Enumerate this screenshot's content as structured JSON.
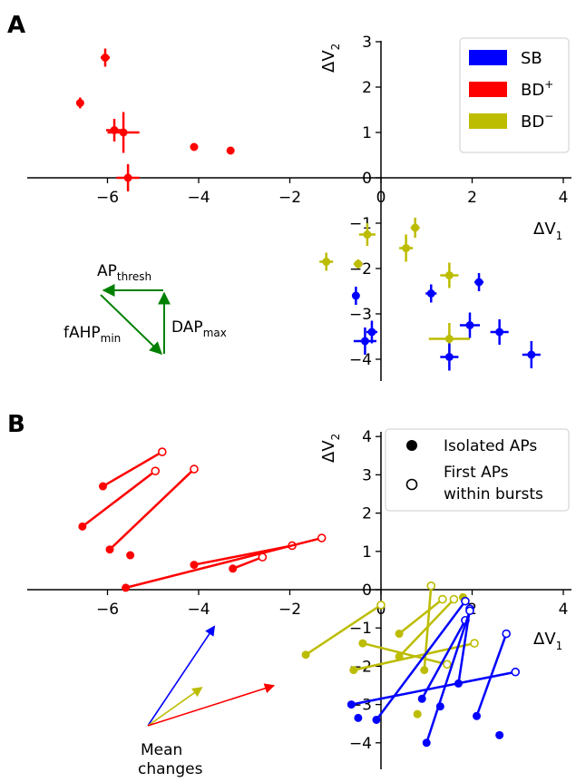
{
  "colors": {
    "SB": "#0000ff",
    "BD_plus": "#ff0000",
    "BD_minus": "#bcbc00",
    "axis": "#000000",
    "diagram": "#008000"
  },
  "chart_data": [
    {
      "panel_label": "A",
      "type": "scatter",
      "xlim": [
        -7,
        4
      ],
      "ylim": [
        -4.5,
        3
      ],
      "xticks": [
        -6,
        -4,
        -2,
        0,
        2,
        4
      ],
      "yticks": [
        -4,
        -3,
        -2,
        -1,
        0,
        1,
        2,
        3
      ],
      "xtick_labels": [
        "−6",
        "−4",
        "−2",
        "0",
        "2",
        "4"
      ],
      "ytick_labels": [
        "−4",
        "−3",
        "−2",
        "−1",
        "0",
        "1",
        "2",
        "3"
      ],
      "xlabel": {
        "base": "ΔV",
        "sub": "1"
      },
      "ylabel": {
        "base": "ΔV",
        "sub": "2"
      },
      "legend_position": "upper right",
      "legend": [
        {
          "base": "SB",
          "sup": "",
          "color_key": "SB"
        },
        {
          "base": "BD",
          "sup": "+",
          "color_key": "BD_plus"
        },
        {
          "base": "BD",
          "sup": "−",
          "color_key": "BD_minus"
        }
      ],
      "series": [
        {
          "color_key": "BD_plus",
          "points": [
            {
              "x": -6.05,
              "y": 2.65,
              "xerr": 0.1,
              "yerr": 0.2
            },
            {
              "x": -6.6,
              "y": 1.65,
              "xerr": 0.08,
              "yerr": 0.12
            },
            {
              "x": -5.85,
              "y": 1.05,
              "xerr": 0.18,
              "yerr": 0.25
            },
            {
              "x": -5.65,
              "y": 1.0,
              "xerr": 0.35,
              "yerr": 0.45
            },
            {
              "x": -5.55,
              "y": 0.0,
              "xerr": 0.25,
              "yerr": 0.3
            },
            {
              "x": -4.1,
              "y": 0.68,
              "xerr": 0.05,
              "yerr": 0.05
            },
            {
              "x": -3.3,
              "y": 0.6,
              "xerr": 0.08,
              "yerr": 0.05
            }
          ]
        },
        {
          "color_key": "BD_minus",
          "points": [
            {
              "x": -1.2,
              "y": -1.85,
              "xerr": 0.15,
              "yerr": 0.2
            },
            {
              "x": -0.5,
              "y": -1.9,
              "xerr": 0.1,
              "yerr": 0.1
            },
            {
              "x": -0.3,
              "y": -1.25,
              "xerr": 0.18,
              "yerr": 0.25
            },
            {
              "x": 0.55,
              "y": -1.55,
              "xerr": 0.15,
              "yerr": 0.3
            },
            {
              "x": 0.75,
              "y": -1.1,
              "xerr": 0.1,
              "yerr": 0.22
            },
            {
              "x": 1.5,
              "y": -2.15,
              "xerr": 0.2,
              "yerr": 0.28
            },
            {
              "x": 1.5,
              "y": -3.55,
              "xerr": 0.45,
              "yerr": 0.35
            }
          ]
        },
        {
          "color_key": "SB",
          "points": [
            {
              "x": -0.55,
              "y": -2.6,
              "xerr": 0.05,
              "yerr": 0.2
            },
            {
              "x": 1.1,
              "y": -2.55,
              "xerr": 0.12,
              "yerr": 0.2
            },
            {
              "x": 2.15,
              "y": -2.3,
              "xerr": 0.1,
              "yerr": 0.2
            },
            {
              "x": -0.35,
              "y": -3.6,
              "xerr": 0.25,
              "yerr": 0.3
            },
            {
              "x": -0.2,
              "y": -3.4,
              "xerr": 0.12,
              "yerr": 0.25
            },
            {
              "x": 1.95,
              "y": -3.25,
              "xerr": 0.22,
              "yerr": 0.28
            },
            {
              "x": 2.6,
              "y": -3.4,
              "xerr": 0.2,
              "yerr": 0.28
            },
            {
              "x": 1.5,
              "y": -3.95,
              "xerr": 0.2,
              "yerr": 0.3
            },
            {
              "x": 3.3,
              "y": -3.9,
              "xerr": 0.2,
              "yerr": 0.3
            }
          ]
        }
      ]
    },
    {
      "panel_label": "B",
      "type": "scatter",
      "xlim": [
        -7,
        4
      ],
      "ylim": [
        -4.5,
        4
      ],
      "xticks": [
        -6,
        -4,
        -2,
        0,
        2,
        4
      ],
      "yticks": [
        -4,
        -3,
        -2,
        -1,
        0,
        1,
        2,
        3,
        4
      ],
      "xtick_labels": [
        "−6",
        "−4",
        "−2",
        "0",
        "2",
        "4"
      ],
      "ytick_labels": [
        "−4",
        "−3",
        "−2",
        "−1",
        "0",
        "1",
        "2",
        "3",
        "4"
      ],
      "xlabel": {
        "base": "ΔV",
        "sub": "1"
      },
      "ylabel": {
        "base": "ΔV",
        "sub": "2"
      },
      "legend_position": "upper right",
      "legend": [
        {
          "marker": "filled",
          "lines": [
            "Isolated APs"
          ]
        },
        {
          "marker": "open",
          "lines": [
            "First APs",
            "within bursts"
          ]
        }
      ],
      "series": [
        {
          "color_key": "BD_plus",
          "pairs": [
            {
              "from": [
                -6.1,
                2.7
              ],
              "to": [
                -4.8,
                3.6
              ]
            },
            {
              "from": [
                -6.55,
                1.65
              ],
              "to": [
                -4.95,
                3.1
              ]
            },
            {
              "from": [
                -5.95,
                1.05
              ],
              "to": [
                -4.1,
                3.15
              ]
            },
            {
              "from": [
                -4.1,
                0.65
              ],
              "to": [
                -1.95,
                1.15
              ]
            },
            {
              "from": [
                -3.25,
                0.55
              ],
              "to": [
                -2.6,
                0.85
              ]
            },
            {
              "from": [
                -5.6,
                0.05
              ],
              "to": [
                -1.3,
                1.35
              ]
            },
            {
              "from": [
                -5.5,
                0.9
              ],
              "to": null
            }
          ]
        },
        {
          "color_key": "BD_minus",
          "pairs": [
            {
              "from": [
                -1.65,
                -1.7
              ],
              "to": [
                0.0,
                -0.4
              ]
            },
            {
              "from": [
                -0.6,
                -2.1
              ],
              "to": [
                2.05,
                -1.4
              ]
            },
            {
              "from": [
                0.4,
                -1.15
              ],
              "to": [
                1.35,
                -0.25
              ]
            },
            {
              "from": [
                0.4,
                -1.75
              ],
              "to": [
                1.6,
                -0.25
              ]
            },
            {
              "from": [
                0.95,
                -2.1
              ],
              "to": [
                1.1,
                0.1
              ]
            },
            {
              "from": [
                -0.4,
                -1.4
              ],
              "to": [
                1.45,
                -1.95
              ]
            },
            {
              "from": [
                1.8,
                -0.2
              ],
              "to": null
            },
            {
              "from": [
                0.8,
                -3.25
              ],
              "to": null
            }
          ]
        },
        {
          "color_key": "SB",
          "pairs": [
            {
              "from": [
                -0.65,
                -3.0
              ],
              "to": [
                2.95,
                -2.15
              ]
            },
            {
              "from": [
                -0.1,
                -3.4
              ],
              "to": [
                1.85,
                -0.3
              ]
            },
            {
              "from": [
                0.9,
                -2.85
              ],
              "to": [
                1.85,
                -0.8
              ]
            },
            {
              "from": [
                1.7,
                -2.45
              ],
              "to": [
                1.95,
                -0.5
              ]
            },
            {
              "from": [
                1.0,
                -4.0
              ],
              "to": [
                1.95,
                -0.55
              ]
            },
            {
              "from": [
                2.1,
                -3.3
              ],
              "to": [
                2.75,
                -1.15
              ]
            },
            {
              "from": [
                -0.5,
                -3.35
              ],
              "to": null
            },
            {
              "from": [
                1.3,
                -3.05
              ],
              "to": null
            },
            {
              "from": [
                2.6,
                -3.8
              ],
              "to": null
            }
          ]
        }
      ]
    }
  ],
  "inset_diagram": {
    "labels": [
      {
        "base": "AP",
        "sub": "thresh"
      },
      {
        "base": "fAHP",
        "sub": "min"
      },
      {
        "base": "DAP",
        "sub": "max"
      }
    ]
  },
  "mean_changes": {
    "label_lines": [
      "Mean",
      "changes"
    ],
    "arrows": [
      {
        "color_key": "SB",
        "dx": 1.85,
        "dy": 2.6
      },
      {
        "color_key": "BD_minus",
        "dx": 1.5,
        "dy": 1.0
      },
      {
        "color_key": "BD_plus",
        "dx": 3.5,
        "dy": 1.05
      }
    ]
  }
}
